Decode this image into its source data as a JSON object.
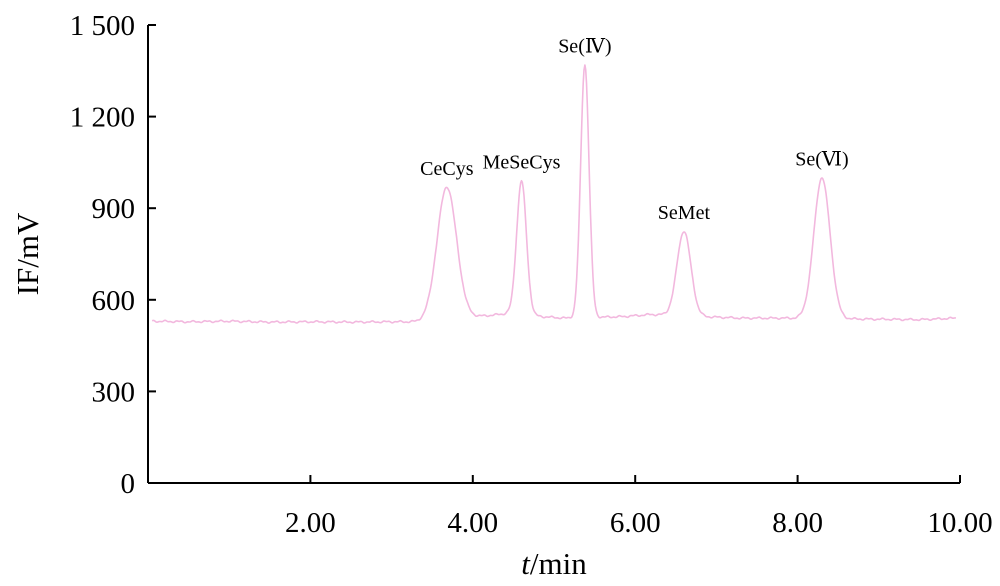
{
  "chart_data": {
    "type": "line",
    "title": "",
    "xlabel": {
      "italic": "t",
      "rest": "/min"
    },
    "ylabel": "IF/mV",
    "xlim": [
      0,
      10
    ],
    "ylim": [
      0,
      1500
    ],
    "x_ticks": [
      2,
      4,
      6,
      8,
      10
    ],
    "x_tick_labels": [
      "2.00",
      "4.00",
      "6.00",
      "8.00",
      "10.00"
    ],
    "y_ticks": [
      0,
      300,
      600,
      900,
      1200,
      1500
    ],
    "y_tick_labels": [
      "0",
      "300",
      "600",
      "900",
      "1 200",
      "1 500"
    ],
    "grid": false,
    "series_color": "#f2b8de",
    "baseline": [
      [
        0.05,
        530
      ],
      [
        0.5,
        528
      ],
      [
        1.0,
        530
      ],
      [
        1.5,
        527
      ],
      [
        2.0,
        528
      ],
      [
        2.5,
        527
      ],
      [
        3.0,
        528
      ],
      [
        3.3,
        528
      ],
      [
        4.25,
        550
      ],
      [
        4.42,
        555
      ],
      [
        4.95,
        543
      ],
      [
        5.14,
        540
      ],
      [
        5.85,
        545
      ],
      [
        6.2,
        552
      ],
      [
        7.3,
        540
      ],
      [
        7.8,
        540
      ],
      [
        9.5,
        535
      ],
      [
        9.95,
        540
      ]
    ],
    "peaks": [
      {
        "label": "CeCys",
        "t": 3.68,
        "height": 970,
        "sigma": 0.12
      },
      {
        "label": "MeSeCys",
        "t": 4.6,
        "height": 990,
        "sigma": 0.06
      },
      {
        "label": "Se(Ⅳ)",
        "t": 5.38,
        "height": 1370,
        "sigma": 0.052
      },
      {
        "label": "SeMet",
        "t": 6.6,
        "height": 825,
        "sigma": 0.085
      },
      {
        "label": "Se(Ⅵ)",
        "t": 8.3,
        "height": 1000,
        "sigma": 0.1
      }
    ]
  }
}
